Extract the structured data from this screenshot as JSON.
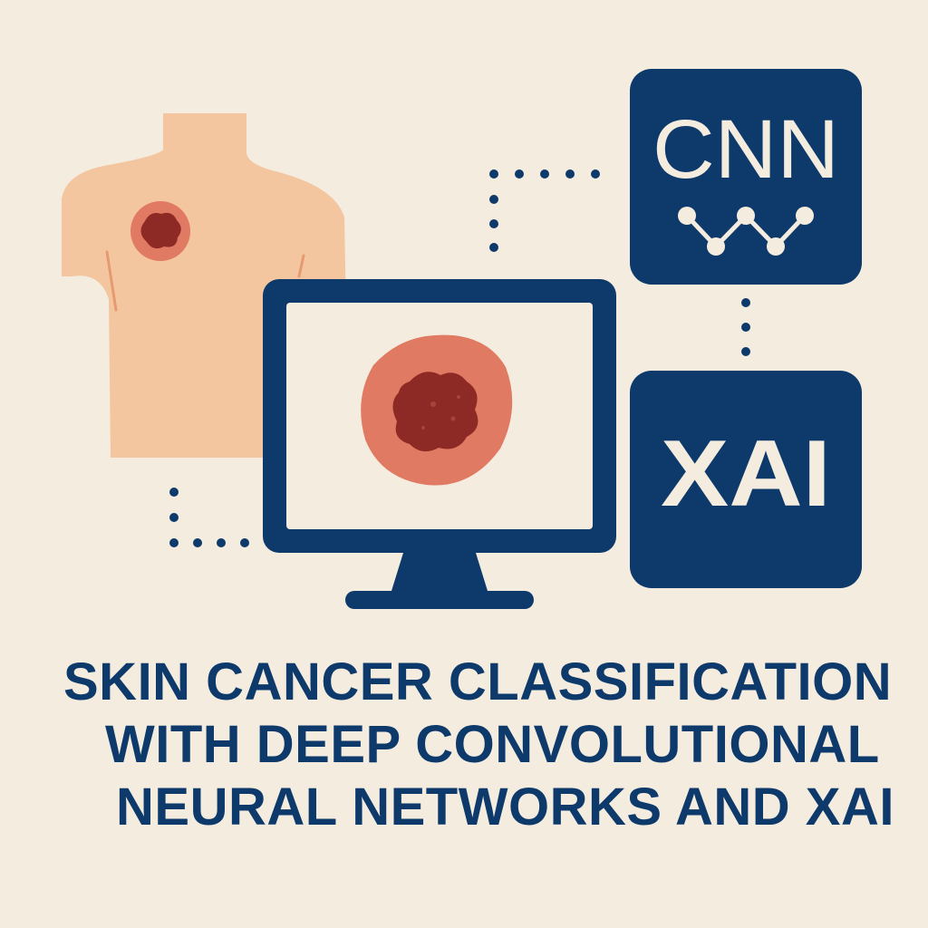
{
  "boxes": {
    "top_label": "CNN",
    "bottom_label": "XAI"
  },
  "title_lines": [
    "SKIN CANCER CLASSIFICATION",
    "WITH DEEP CONVOLUTIONAL",
    "NEURAL NETWORKS AND XAI"
  ],
  "colors": {
    "background": "#f5ece0",
    "navy": "#0d3a6a",
    "skin": "#f4c6a0",
    "lesion_outer": "#e07a62",
    "lesion_inner": "#8e2a26"
  }
}
